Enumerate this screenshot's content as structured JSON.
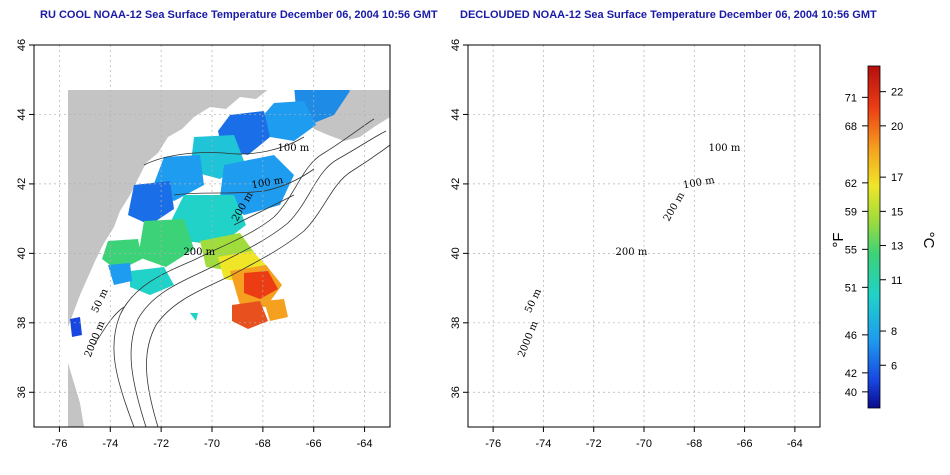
{
  "panels": [
    {
      "title": "RU COOL NOAA-12 Sea Surface Temperature December 06, 2004 10:56 GMT",
      "x_ticks": [
        "-76",
        "-74",
        "-72",
        "-70",
        "-68",
        "-66",
        "-64"
      ],
      "y_ticks": [
        "36",
        "38",
        "40",
        "42",
        "44",
        "46"
      ],
      "contour_labels": [
        "100 m",
        "100 m",
        "200 m",
        "200 m",
        "50 m",
        "2000 m"
      ]
    },
    {
      "title": "DECLOUDED NOAA-12 Sea Surface Temperature December 06, 2004 10:56 GMT",
      "x_ticks": [
        "-76",
        "-74",
        "-72",
        "-70",
        "-68",
        "-66",
        "-64"
      ],
      "y_ticks": [
        "36",
        "38",
        "40",
        "42",
        "44",
        "46"
      ],
      "contour_labels": [
        "100 m",
        "100 m",
        "200 m",
        "200 m",
        "50 m",
        "2000 m"
      ]
    }
  ],
  "colorbar": {
    "fahrenheit_ticks": [
      "71",
      "68",
      "62",
      "59",
      "55",
      "51",
      "46",
      "42",
      "40"
    ],
    "celsius_ticks": [
      "22",
      "20",
      "17",
      "15",
      "13",
      "11",
      "8",
      "6"
    ],
    "fahrenheit_unit": "°F",
    "celsius_unit": "°C",
    "colors": [
      "#0a0a8c",
      "#1846e0",
      "#1e9cf0",
      "#20d2c8",
      "#3cd278",
      "#a0dc3c",
      "#f0e628",
      "#f5a01e",
      "#eb3c14",
      "#b40f0f"
    ]
  },
  "colors": {
    "land": "#c4c4c4",
    "ocean": "#ffffff",
    "title": "#1a1aa8",
    "grid": "#b0b0b0"
  }
}
